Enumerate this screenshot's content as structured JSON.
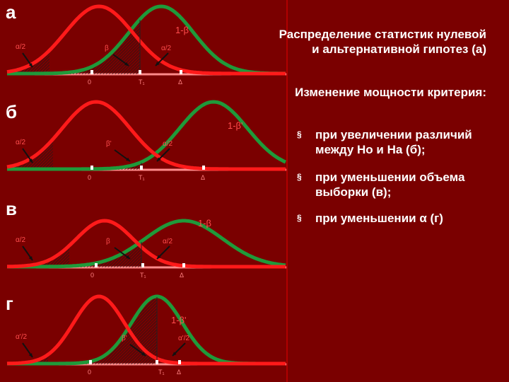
{
  "panels": [
    {
      "letter": "а",
      "alpha_left": "α/2",
      "alpha_right": "α/2",
      "beta": "β",
      "power": "1-β",
      "zero": "0",
      "t": "T₁",
      "delta": "Δ"
    },
    {
      "letter": "б",
      "alpha_left": "α/2",
      "alpha_right": "α/2",
      "beta": "β'",
      "power": "1-β'",
      "zero": "0",
      "t": "T₁",
      "delta": "Δ"
    },
    {
      "letter": "в",
      "alpha_left": "α/2",
      "alpha_right": "α/2",
      "beta": "β",
      "power": "1-β",
      "zero": "0",
      "t": "T₁",
      "delta": "Δ"
    },
    {
      "letter": "г",
      "alpha_left": "α'/2",
      "alpha_right": "α'/2",
      "beta": "β'",
      "power": "1-β'",
      "zero": "0",
      "t": "T₁",
      "delta": "Δ"
    }
  ],
  "text": {
    "heading": "Распределение статистик нулевой и альтернативной гипотез (а)",
    "subheading": "Изменение мощности критерия:",
    "bullet_mark": "§",
    "bullets": [
      "при увеличении различий между Ho и Ha (б);",
      "при уменьшении объема выборки (в);",
      "при уменьшении α (г)"
    ]
  },
  "colors": {
    "background": "#7a0000",
    "null_curve": "#ff1a1a",
    "alt_curve": "#1f9a3a",
    "axis": "#ff8a8a"
  }
}
